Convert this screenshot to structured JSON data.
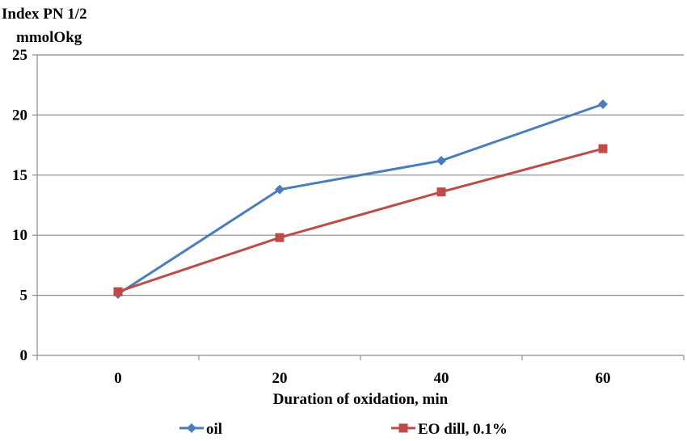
{
  "chart_data": {
    "type": "line",
    "categories": [
      "0",
      "20",
      "40",
      "60"
    ],
    "series": [
      {
        "name": "oil",
        "values": [
          5.1,
          13.8,
          16.2,
          20.9
        ],
        "color": "#4a7ebb",
        "marker": "diamond"
      },
      {
        "name": "EO dill,  0.1%",
        "values": [
          5.3,
          9.8,
          13.6,
          17.2
        ],
        "color": "#be4b48",
        "marker": "square"
      }
    ],
    "ylabel_line1": "Index PN 1/2",
    "ylabel_line2": "mmolOkg",
    "xlabel": "Duration of oxidation, min",
    "ylim": [
      0,
      25
    ],
    "yticks": [
      "0",
      "5",
      "10",
      "15",
      "20",
      "25"
    ],
    "grid": "horizontal",
    "legend_position": "bottom"
  }
}
